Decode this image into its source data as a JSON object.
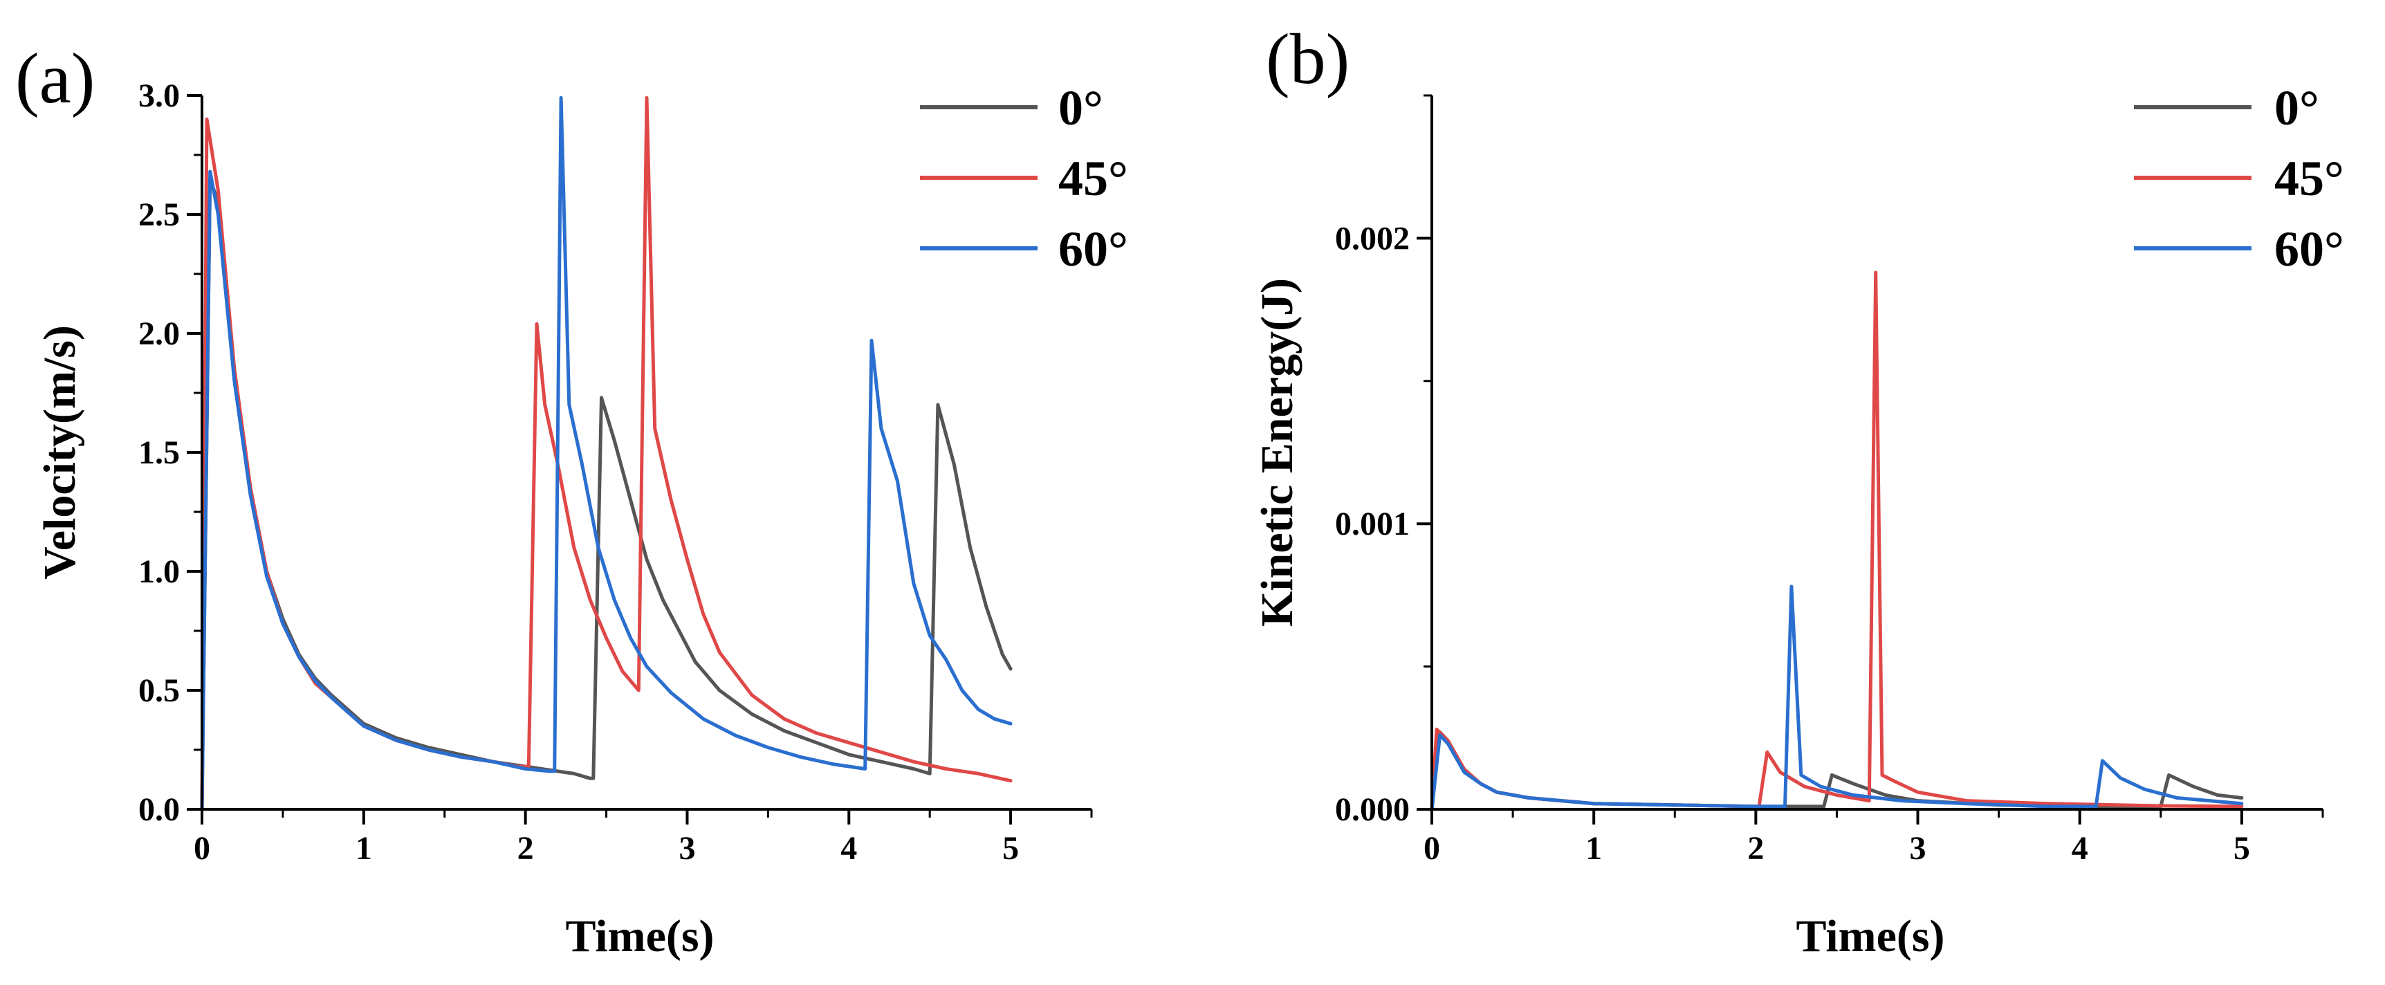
{
  "figure": {
    "panels": [
      "(a)",
      "(b)"
    ]
  },
  "chart_data": [
    {
      "type": "line",
      "panel_label": "(a)",
      "title": "",
      "xlabel": "Time(s)",
      "ylabel": "Velocity(m/s)",
      "xlim": [
        0,
        5.5
      ],
      "ylim": [
        0,
        3.0
      ],
      "x_ticks": [
        0,
        1,
        2,
        3,
        4,
        5
      ],
      "x_tick_labels": [
        "0",
        "1",
        "2",
        "3",
        "4",
        "5"
      ],
      "y_ticks": [
        0,
        0.5,
        1.0,
        1.5,
        2.0,
        2.5,
        3.0
      ],
      "y_tick_labels": [
        "0.0",
        "0.5",
        "1.0",
        "1.5",
        "2.0",
        "2.5",
        "3.0"
      ],
      "legend_position": "top-right",
      "series": [
        {
          "name": "0°",
          "color": "#555555",
          "points": [
            [
              0,
              0
            ],
            [
              0.05,
              2.65
            ],
            [
              0.1,
              2.55
            ],
            [
              0.2,
              1.85
            ],
            [
              0.3,
              1.35
            ],
            [
              0.4,
              1.0
            ],
            [
              0.5,
              0.8
            ],
            [
              0.6,
              0.65
            ],
            [
              0.7,
              0.55
            ],
            [
              0.8,
              0.48
            ],
            [
              0.9,
              0.42
            ],
            [
              1.0,
              0.36
            ],
            [
              1.2,
              0.3
            ],
            [
              1.4,
              0.26
            ],
            [
              1.6,
              0.23
            ],
            [
              1.8,
              0.2
            ],
            [
              2.0,
              0.18
            ],
            [
              2.2,
              0.16
            ],
            [
              2.3,
              0.15
            ],
            [
              2.4,
              0.13
            ],
            [
              2.42,
              0.13
            ],
            [
              2.47,
              1.73
            ],
            [
              2.55,
              1.55
            ],
            [
              2.65,
              1.3
            ],
            [
              2.75,
              1.05
            ],
            [
              2.85,
              0.88
            ],
            [
              2.95,
              0.75
            ],
            [
              3.05,
              0.62
            ],
            [
              3.2,
              0.5
            ],
            [
              3.4,
              0.4
            ],
            [
              3.6,
              0.33
            ],
            [
              3.8,
              0.28
            ],
            [
              4.0,
              0.23
            ],
            [
              4.2,
              0.2
            ],
            [
              4.4,
              0.17
            ],
            [
              4.5,
              0.15
            ],
            [
              4.55,
              1.7
            ],
            [
              4.65,
              1.45
            ],
            [
              4.75,
              1.1
            ],
            [
              4.85,
              0.85
            ],
            [
              4.95,
              0.65
            ],
            [
              5.0,
              0.59
            ]
          ]
        },
        {
          "name": "45°",
          "color": "#e04848",
          "points": [
            [
              0,
              0
            ],
            [
              0.03,
              2.9
            ],
            [
              0.1,
              2.6
            ],
            [
              0.2,
              1.85
            ],
            [
              0.3,
              1.35
            ],
            [
              0.4,
              1.0
            ],
            [
              0.5,
              0.78
            ],
            [
              0.6,
              0.64
            ],
            [
              0.7,
              0.53
            ],
            [
              0.8,
              0.47
            ],
            [
              0.9,
              0.41
            ],
            [
              1.0,
              0.35
            ],
            [
              1.2,
              0.29
            ],
            [
              1.4,
              0.25
            ],
            [
              1.6,
              0.22
            ],
            [
              1.8,
              0.2
            ],
            [
              1.95,
              0.18
            ],
            [
              2.02,
              0.18
            ],
            [
              2.07,
              2.04
            ],
            [
              2.12,
              1.7
            ],
            [
              2.2,
              1.45
            ],
            [
              2.3,
              1.1
            ],
            [
              2.4,
              0.88
            ],
            [
              2.5,
              0.72
            ],
            [
              2.6,
              0.58
            ],
            [
              2.7,
              0.5
            ],
            [
              2.75,
              2.99
            ],
            [
              2.8,
              1.6
            ],
            [
              2.9,
              1.3
            ],
            [
              3.0,
              1.05
            ],
            [
              3.1,
              0.82
            ],
            [
              3.2,
              0.66
            ],
            [
              3.4,
              0.48
            ],
            [
              3.6,
              0.38
            ],
            [
              3.8,
              0.32
            ],
            [
              4.0,
              0.28
            ],
            [
              4.2,
              0.24
            ],
            [
              4.4,
              0.2
            ],
            [
              4.6,
              0.17
            ],
            [
              4.8,
              0.15
            ],
            [
              5.0,
              0.12
            ]
          ]
        },
        {
          "name": "60°",
          "color": "#2a6fd0",
          "points": [
            [
              0,
              0
            ],
            [
              0.05,
              2.68
            ],
            [
              0.1,
              2.5
            ],
            [
              0.2,
              1.8
            ],
            [
              0.3,
              1.32
            ],
            [
              0.4,
              0.98
            ],
            [
              0.5,
              0.78
            ],
            [
              0.6,
              0.64
            ],
            [
              0.7,
              0.54
            ],
            [
              0.8,
              0.47
            ],
            [
              0.9,
              0.41
            ],
            [
              1.0,
              0.35
            ],
            [
              1.2,
              0.29
            ],
            [
              1.4,
              0.25
            ],
            [
              1.6,
              0.22
            ],
            [
              1.8,
              0.2
            ],
            [
              2.0,
              0.17
            ],
            [
              2.15,
              0.16
            ],
            [
              2.18,
              0.16
            ],
            [
              2.22,
              2.99
            ],
            [
              2.27,
              1.7
            ],
            [
              2.35,
              1.45
            ],
            [
              2.45,
              1.1
            ],
            [
              2.55,
              0.88
            ],
            [
              2.65,
              0.72
            ],
            [
              2.75,
              0.6
            ],
            [
              2.9,
              0.49
            ],
            [
              3.1,
              0.38
            ],
            [
              3.3,
              0.31
            ],
            [
              3.5,
              0.26
            ],
            [
              3.7,
              0.22
            ],
            [
              3.9,
              0.19
            ],
            [
              4.1,
              0.17
            ],
            [
              4.14,
              1.97
            ],
            [
              4.2,
              1.6
            ],
            [
              4.3,
              1.38
            ],
            [
              4.4,
              0.95
            ],
            [
              4.5,
              0.73
            ],
            [
              4.6,
              0.63
            ],
            [
              4.7,
              0.5
            ],
            [
              4.8,
              0.42
            ],
            [
              4.9,
              0.38
            ],
            [
              5.0,
              0.36
            ]
          ]
        }
      ]
    },
    {
      "type": "line",
      "panel_label": "(b)",
      "title": "",
      "xlabel": "Time(s)",
      "ylabel": "Kinetic Energy(J)",
      "xlim": [
        0,
        5.5
      ],
      "ylim": [
        0,
        0.0025
      ],
      "x_ticks": [
        0,
        1,
        2,
        3,
        4,
        5
      ],
      "x_tick_labels": [
        "0",
        "1",
        "2",
        "3",
        "4",
        "5"
      ],
      "y_ticks": [
        0,
        0.001,
        0.002
      ],
      "y_tick_labels": [
        "0.000",
        "0.001",
        "0.002"
      ],
      "legend_position": "top-right",
      "series": [
        {
          "name": "0°",
          "color": "#555555",
          "points": [
            [
              0,
              0
            ],
            [
              0.05,
              0.00027
            ],
            [
              0.1,
              0.00024
            ],
            [
              0.2,
              0.00014
            ],
            [
              0.3,
              9e-05
            ],
            [
              0.4,
              6e-05
            ],
            [
              0.6,
              4e-05
            ],
            [
              0.8,
              3e-05
            ],
            [
              1.0,
              2e-05
            ],
            [
              1.5,
              1.5e-05
            ],
            [
              2.0,
              1e-05
            ],
            [
              2.42,
              1e-05
            ],
            [
              2.47,
              0.00012
            ],
            [
              2.6,
              9e-05
            ],
            [
              2.8,
              5e-05
            ],
            [
              3.0,
              3e-05
            ],
            [
              3.5,
              1.5e-05
            ],
            [
              4.0,
              1e-05
            ],
            [
              4.5,
              1e-05
            ],
            [
              4.55,
              0.00012
            ],
            [
              4.7,
              8e-05
            ],
            [
              4.85,
              5e-05
            ],
            [
              5.0,
              4e-05
            ]
          ]
        },
        {
          "name": "45°",
          "color": "#e04848",
          "points": [
            [
              0,
              0
            ],
            [
              0.03,
              0.00028
            ],
            [
              0.1,
              0.00024
            ],
            [
              0.2,
              0.00014
            ],
            [
              0.3,
              9e-05
            ],
            [
              0.4,
              6e-05
            ],
            [
              0.6,
              4e-05
            ],
            [
              0.8,
              3e-05
            ],
            [
              1.0,
              2e-05
            ],
            [
              1.5,
              1.5e-05
            ],
            [
              2.0,
              1e-05
            ],
            [
              2.02,
              1e-05
            ],
            [
              2.07,
              0.0002
            ],
            [
              2.15,
              0.00013
            ],
            [
              2.3,
              8e-05
            ],
            [
              2.5,
              5e-05
            ],
            [
              2.7,
              3e-05
            ],
            [
              2.74,
              0.00188
            ],
            [
              2.78,
              0.00012
            ],
            [
              2.85,
              0.0001
            ],
            [
              3.0,
              6e-05
            ],
            [
              3.3,
              3e-05
            ],
            [
              3.8,
              2e-05
            ],
            [
              4.5,
              1.2e-05
            ],
            [
              5.0,
              1e-05
            ]
          ]
        },
        {
          "name": "60°",
          "color": "#2a6fd0",
          "points": [
            [
              0,
              0
            ],
            [
              0.05,
              0.00026
            ],
            [
              0.1,
              0.00023
            ],
            [
              0.2,
              0.00013
            ],
            [
              0.3,
              9e-05
            ],
            [
              0.4,
              6e-05
            ],
            [
              0.6,
              4e-05
            ],
            [
              0.8,
              3e-05
            ],
            [
              1.0,
              2e-05
            ],
            [
              1.5,
              1.5e-05
            ],
            [
              2.0,
              1e-05
            ],
            [
              2.18,
              1e-05
            ],
            [
              2.22,
              0.00078
            ],
            [
              2.28,
              0.00012
            ],
            [
              2.4,
              8e-05
            ],
            [
              2.6,
              5e-05
            ],
            [
              2.9,
              3e-05
            ],
            [
              3.3,
              2e-05
            ],
            [
              3.8,
              1e-05
            ],
            [
              4.1,
              1e-05
            ],
            [
              4.14,
              0.00017
            ],
            [
              4.25,
              0.00011
            ],
            [
              4.4,
              7e-05
            ],
            [
              4.6,
              4e-05
            ],
            [
              4.8,
              3e-05
            ],
            [
              5.0,
              2e-05
            ]
          ]
        }
      ]
    }
  ]
}
